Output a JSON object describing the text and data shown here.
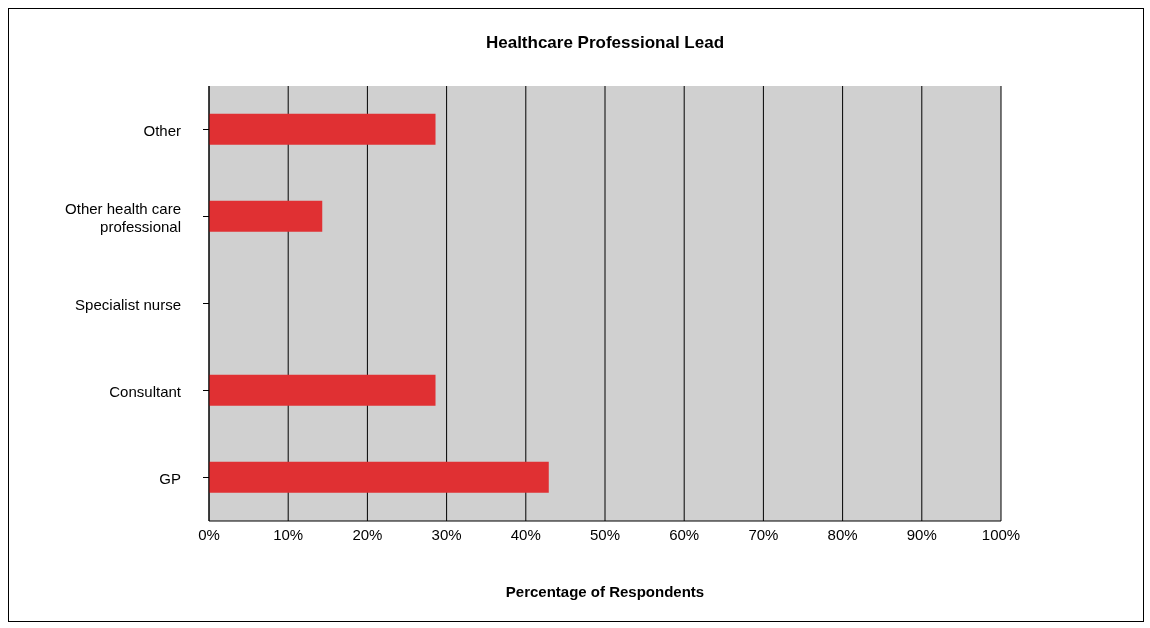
{
  "chart_data": {
    "type": "bar",
    "orientation": "horizontal",
    "title": "Healthcare Professional Lead",
    "xlabel": "Percentage of Respondents",
    "categories": [
      "Other",
      "Other health care professional",
      "Specialist nurse",
      "Consultant",
      "GP"
    ],
    "values": [
      28.6,
      14.3,
      0,
      28.6,
      42.9
    ],
    "color": "#e03033",
    "xlim": [
      0,
      100
    ],
    "xticks": [
      {
        "value": 0,
        "label": "0%"
      },
      {
        "value": 10,
        "label": "10%"
      },
      {
        "value": 20,
        "label": "20%"
      },
      {
        "value": 30,
        "label": "30%"
      },
      {
        "value": 40,
        "label": "40%"
      },
      {
        "value": 50,
        "label": "50%"
      },
      {
        "value": 60,
        "label": "60%"
      },
      {
        "value": 70,
        "label": "70%"
      },
      {
        "value": 80,
        "label": "80%"
      },
      {
        "value": 90,
        "label": "90%"
      },
      {
        "value": 100,
        "label": "100%"
      }
    ],
    "grid": "x",
    "legend": false
  }
}
